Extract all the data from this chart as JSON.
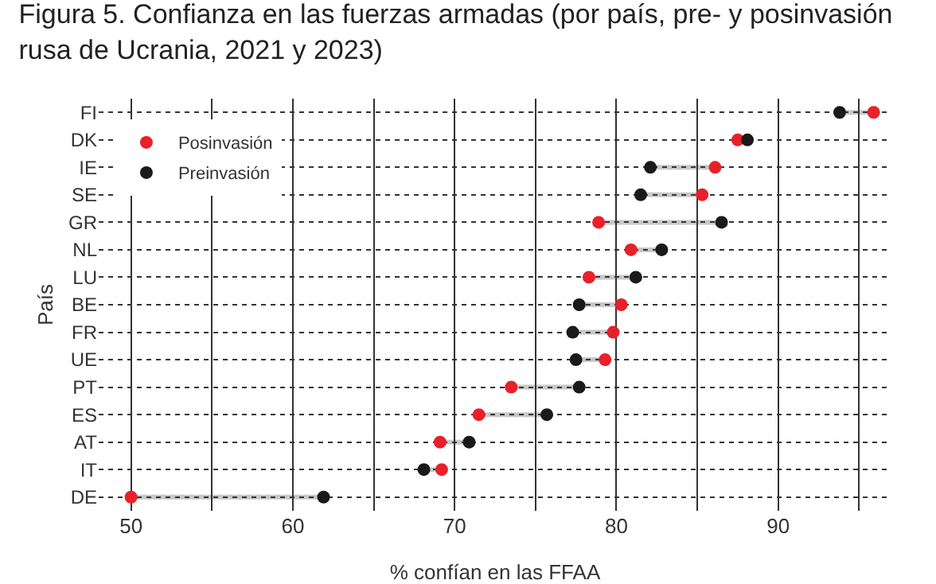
{
  "chart_data": {
    "type": "scatter",
    "orientation": "horizontal",
    "title": "Figura 5. Confianza en las fuerzas armadas (por país, pre- y posinvasión\nrusa de Ucrania, 2021 y 2023)",
    "xlabel": "% confían en las FFAA",
    "ylabel": "País",
    "categories": [
      "FI",
      "DK",
      "IE",
      "SE",
      "GR",
      "NL",
      "LU",
      "BE",
      "FR",
      "UE",
      "PT",
      "ES",
      "AT",
      "IT",
      "DE"
    ],
    "series": [
      {
        "name": "Posinvasión",
        "color": "#e8202a",
        "values": [
          95.9,
          87.5,
          86.1,
          85.3,
          78.9,
          80.9,
          78.3,
          80.3,
          79.8,
          79.3,
          73.5,
          71.5,
          69.1,
          69.2,
          50.0
        ]
      },
      {
        "name": "Preinvasión",
        "color": "#1a1a1a",
        "values": [
          93.8,
          88.1,
          82.1,
          81.5,
          86.5,
          82.8,
          81.2,
          77.7,
          77.3,
          77.5,
          77.7,
          75.7,
          70.9,
          68.1,
          61.9
        ]
      }
    ],
    "xlim": [
      48,
      97
    ],
    "xticks": [
      50,
      {
        "value": 55,
        "label": null
      },
      60,
      {
        "value": 65,
        "label": null
      },
      70,
      {
        "value": 75,
        "label": null
      },
      80,
      {
        "value": 85,
        "label": null
      },
      90,
      {
        "value": 95,
        "label": null
      }
    ],
    "grid": true,
    "legend": "top left",
    "marker": "circle"
  }
}
